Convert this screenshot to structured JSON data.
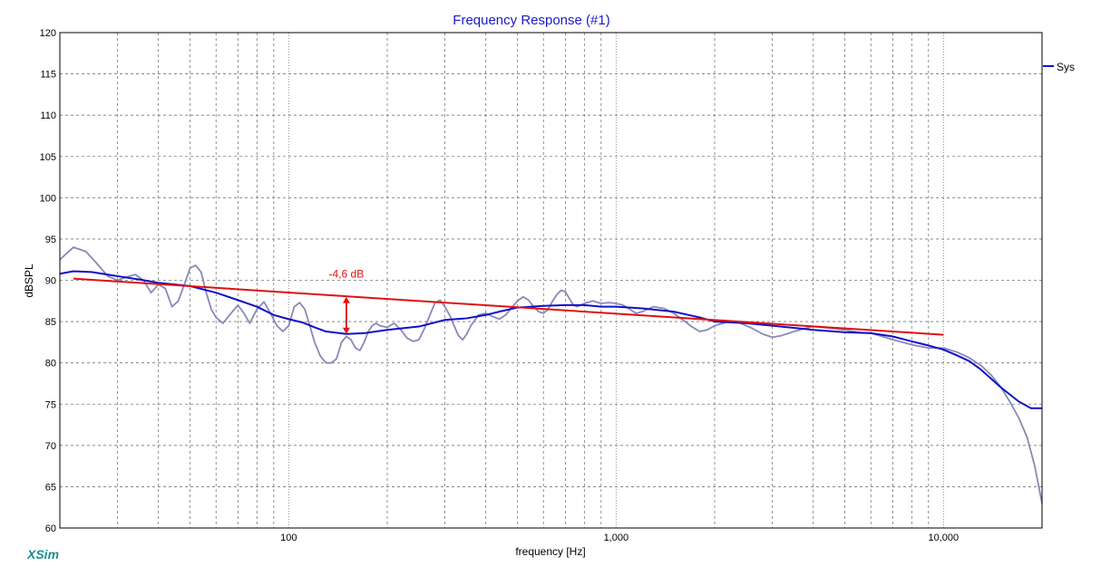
{
  "chart_data": {
    "type": "line",
    "title": "Frequency Response (#1)",
    "xlabel": "frequency [Hz]",
    "ylabel": "dBSPL",
    "x_scale": "log",
    "xlim": [
      20,
      20000
    ],
    "ylim": [
      60,
      120
    ],
    "y_ticks": [
      60,
      65,
      70,
      75,
      80,
      85,
      90,
      95,
      100,
      105,
      110,
      115,
      120
    ],
    "x_tick_labels": [
      {
        "value": 100,
        "label": "100"
      },
      {
        "value": 1000,
        "label": "1,000"
      },
      {
        "value": 10000,
        "label": "10,000"
      }
    ],
    "grid": true,
    "legend": {
      "placement": "top-right",
      "entries": [
        "Sys"
      ]
    },
    "series": [
      {
        "name": "Sys",
        "color": "#1010c8",
        "points": [
          [
            20,
            90.8
          ],
          [
            22,
            91.1
          ],
          [
            25,
            91.0
          ],
          [
            30,
            90.5
          ],
          [
            35,
            90.1
          ],
          [
            40,
            89.7
          ],
          [
            50,
            89.3
          ],
          [
            60,
            88.5
          ],
          [
            70,
            87.6
          ],
          [
            80,
            86.8
          ],
          [
            90,
            85.8
          ],
          [
            100,
            85.3
          ],
          [
            110,
            84.9
          ],
          [
            120,
            84.3
          ],
          [
            130,
            83.8
          ],
          [
            150,
            83.5
          ],
          [
            170,
            83.6
          ],
          [
            200,
            84.0
          ],
          [
            250,
            84.4
          ],
          [
            300,
            85.2
          ],
          [
            350,
            85.4
          ],
          [
            400,
            85.8
          ],
          [
            450,
            86.3
          ],
          [
            500,
            86.7
          ],
          [
            600,
            86.9
          ],
          [
            700,
            87.0
          ],
          [
            800,
            87.0
          ],
          [
            900,
            86.8
          ],
          [
            1000,
            86.8
          ],
          [
            1200,
            86.6
          ],
          [
            1500,
            86.2
          ],
          [
            1800,
            85.5
          ],
          [
            2000,
            85.0
          ],
          [
            2500,
            84.8
          ],
          [
            3000,
            84.5
          ],
          [
            4000,
            84.0
          ],
          [
            5000,
            83.7
          ],
          [
            6000,
            83.6
          ],
          [
            7000,
            83.2
          ],
          [
            8000,
            82.6
          ],
          [
            9000,
            82.1
          ],
          [
            10000,
            81.6
          ],
          [
            11000,
            80.9
          ],
          [
            12000,
            80.2
          ],
          [
            13000,
            79.2
          ],
          [
            15000,
            77.0
          ],
          [
            17000,
            75.3
          ],
          [
            18500,
            74.5
          ],
          [
            20000,
            74.5
          ]
        ]
      },
      {
        "name": "",
        "color": "#8888b8",
        "points": [
          [
            20,
            92.5
          ],
          [
            22,
            94.0
          ],
          [
            24,
            93.5
          ],
          [
            26,
            92.0
          ],
          [
            28,
            90.5
          ],
          [
            30,
            90.0
          ],
          [
            32,
            90.4
          ],
          [
            34,
            90.7
          ],
          [
            36,
            90.0
          ],
          [
            38,
            88.5
          ],
          [
            40,
            89.5
          ],
          [
            42,
            89.0
          ],
          [
            44,
            86.8
          ],
          [
            46,
            87.5
          ],
          [
            48,
            89.5
          ],
          [
            50,
            91.5
          ],
          [
            52,
            91.8
          ],
          [
            54,
            91.0
          ],
          [
            56,
            88.5
          ],
          [
            58,
            86.5
          ],
          [
            60,
            85.5
          ],
          [
            63,
            84.8
          ],
          [
            66,
            85.8
          ],
          [
            70,
            87.0
          ],
          [
            73,
            86.0
          ],
          [
            76,
            84.8
          ],
          [
            80,
            86.5
          ],
          [
            84,
            87.4
          ],
          [
            88,
            86.0
          ],
          [
            92,
            84.5
          ],
          [
            96,
            83.8
          ],
          [
            100,
            84.5
          ],
          [
            104,
            86.8
          ],
          [
            108,
            87.3
          ],
          [
            112,
            86.5
          ],
          [
            116,
            84.5
          ],
          [
            120,
            82.5
          ],
          [
            125,
            80.8
          ],
          [
            130,
            80.0
          ],
          [
            135,
            80.0
          ],
          [
            140,
            80.5
          ],
          [
            145,
            82.5
          ],
          [
            150,
            83.2
          ],
          [
            155,
            82.8
          ],
          [
            160,
            81.8
          ],
          [
            165,
            81.5
          ],
          [
            170,
            82.5
          ],
          [
            175,
            83.8
          ],
          [
            180,
            84.5
          ],
          [
            185,
            84.8
          ],
          [
            190,
            84.5
          ],
          [
            200,
            84.3
          ],
          [
            210,
            84.8
          ],
          [
            220,
            84.0
          ],
          [
            230,
            83.0
          ],
          [
            240,
            82.6
          ],
          [
            250,
            82.8
          ],
          [
            260,
            84.2
          ],
          [
            270,
            85.8
          ],
          [
            280,
            87.3
          ],
          [
            290,
            87.6
          ],
          [
            300,
            86.8
          ],
          [
            310,
            85.8
          ],
          [
            320,
            84.5
          ],
          [
            330,
            83.3
          ],
          [
            340,
            82.8
          ],
          [
            350,
            83.5
          ],
          [
            360,
            84.5
          ],
          [
            380,
            85.8
          ],
          [
            400,
            86.0
          ],
          [
            420,
            85.6
          ],
          [
            440,
            85.3
          ],
          [
            460,
            85.8
          ],
          [
            480,
            86.7
          ],
          [
            500,
            87.5
          ],
          [
            520,
            88.0
          ],
          [
            540,
            87.6
          ],
          [
            560,
            86.8
          ],
          [
            580,
            86.2
          ],
          [
            600,
            86.0
          ],
          [
            620,
            86.5
          ],
          [
            640,
            87.5
          ],
          [
            660,
            88.3
          ],
          [
            680,
            88.8
          ],
          [
            700,
            88.6
          ],
          [
            720,
            87.8
          ],
          [
            740,
            87.0
          ],
          [
            760,
            86.8
          ],
          [
            780,
            87.0
          ],
          [
            800,
            87.2
          ],
          [
            850,
            87.5
          ],
          [
            900,
            87.2
          ],
          [
            950,
            87.3
          ],
          [
            1000,
            87.2
          ],
          [
            1050,
            87.0
          ],
          [
            1100,
            86.5
          ],
          [
            1150,
            86.0
          ],
          [
            1200,
            86.2
          ],
          [
            1300,
            86.8
          ],
          [
            1400,
            86.6
          ],
          [
            1500,
            86.0
          ],
          [
            1600,
            85.2
          ],
          [
            1700,
            84.4
          ],
          [
            1800,
            83.8
          ],
          [
            1900,
            84.0
          ],
          [
            2000,
            84.5
          ],
          [
            2200,
            85.0
          ],
          [
            2400,
            84.8
          ],
          [
            2600,
            84.2
          ],
          [
            2800,
            83.5
          ],
          [
            3000,
            83.1
          ],
          [
            3200,
            83.3
          ],
          [
            3500,
            83.8
          ],
          [
            3800,
            84.2
          ],
          [
            4000,
            84.4
          ],
          [
            4500,
            84.2
          ],
          [
            5000,
            84.0
          ],
          [
            5500,
            83.7
          ],
          [
            6000,
            83.6
          ],
          [
            6500,
            83.2
          ],
          [
            7000,
            82.8
          ],
          [
            7500,
            82.5
          ],
          [
            8000,
            82.2
          ],
          [
            9000,
            81.8
          ],
          [
            10000,
            81.8
          ],
          [
            11000,
            81.3
          ],
          [
            12000,
            80.6
          ],
          [
            13000,
            79.7
          ],
          [
            14000,
            78.5
          ],
          [
            15000,
            77.0
          ],
          [
            16000,
            75.2
          ],
          [
            17000,
            73.3
          ],
          [
            18000,
            71.0
          ],
          [
            19000,
            67.5
          ],
          [
            20000,
            63.0
          ]
        ]
      },
      {
        "name": "",
        "color": "#e01010",
        "points": [
          [
            22,
            90.2
          ],
          [
            10000,
            83.4
          ]
        ]
      }
    ],
    "annotations": [
      {
        "text": "-4,6 dB",
        "color": "#e01010",
        "arrow_x": 150,
        "arrow_y_top": 88.0,
        "arrow_y_bottom": 83.5
      }
    ],
    "legend_color": "#1010c8"
  },
  "brand": {
    "text": "XSim",
    "color": "#1a8f8f"
  }
}
